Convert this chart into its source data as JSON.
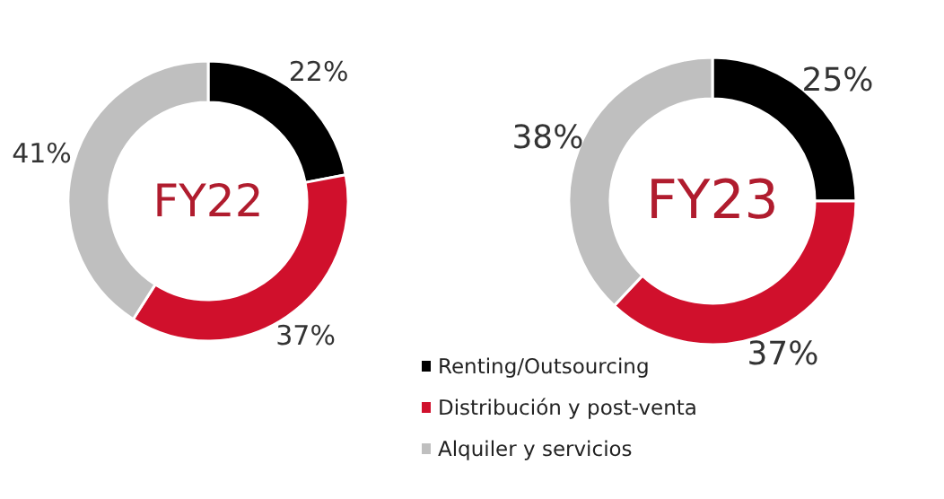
{
  "chart_data": [
    {
      "type": "donut",
      "title": "FY22",
      "categories": [
        "Renting/Outsourcing",
        "Distribución y post-venta",
        "Alquiler y servicios"
      ],
      "values": [
        22,
        37,
        41
      ],
      "colors": [
        "#000000",
        "#d0102c",
        "#bfbfbf"
      ],
      "value_labels": [
        "22%",
        "37%",
        "41%"
      ],
      "legend": "bottom"
    },
    {
      "type": "donut",
      "title": "FY23",
      "values": [
        25,
        37,
        38
      ],
      "colors": [
        "#000000",
        "#d0102c",
        "#bfbfbf"
      ],
      "value_labels": [
        "25%",
        "37%",
        "38%"
      ]
    }
  ]
}
